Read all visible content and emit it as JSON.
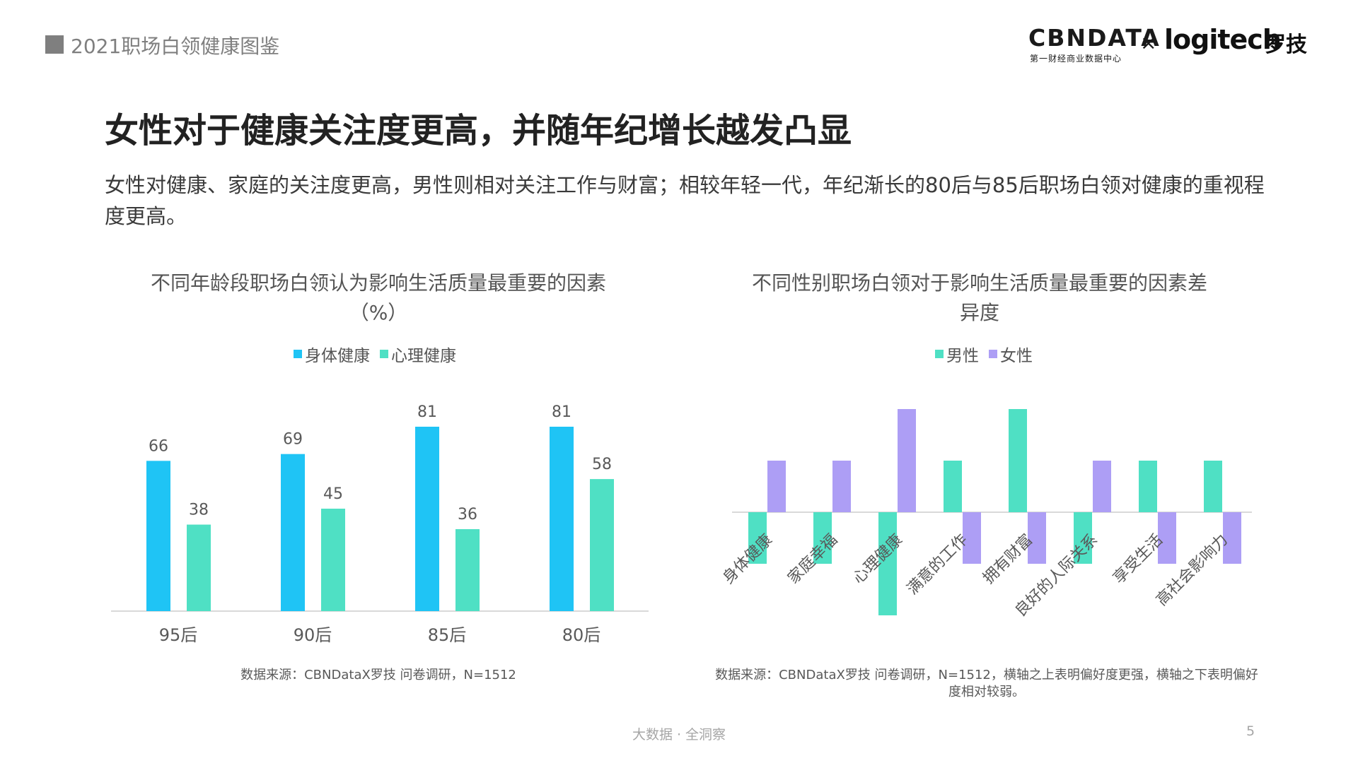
{
  "header": {
    "title": "2021职场白领健康图鉴",
    "logo_cbn": "CBNDATA",
    "logo_cbn_sub": "第一财经商业数据中心",
    "logo_x": "×",
    "logo_logitech": "logitech",
    "logo_logitech_cn": "罗技"
  },
  "main_title": "女性对于健康关注度更高，并随年纪增长越发凸显",
  "subtitle": "女性对健康、家庭的关注度更高，男性则相对关注工作与财富；相较年轻一代，年纪渐长的80后与85后职场白领对健康的重视程度更高。",
  "colors": {
    "physical": "#1fc4f5",
    "mental": "#4fe0c4",
    "male": "#4fe0c4",
    "female": "#ad9ef5",
    "axis": "#d9d9d9"
  },
  "chart_data": [
    {
      "type": "bar",
      "title": "不同年龄段职场白领认为影响生活质量最重要的因素（%）",
      "categories": [
        "95后",
        "90后",
        "85后",
        "80后"
      ],
      "series": [
        {
          "name": "身体健康",
          "values": [
            66,
            69,
            81,
            81
          ]
        },
        {
          "name": "心理健康",
          "values": [
            38,
            45,
            36,
            58
          ]
        }
      ],
      "ylim": [
        0,
        90
      ],
      "grid": false,
      "legend": "top",
      "source": "数据来源：CBNDataX罗技 问卷调研，N=1512"
    },
    {
      "type": "bar",
      "title": "不同性别职场白领对于影响生活质量最重要的因素差异度",
      "categories": [
        "身体健康",
        "家庭幸福",
        "心理健康",
        "满意的工作",
        "拥有财富",
        "良好的人际关系",
        "享受生活",
        "高社会影响力"
      ],
      "series": [
        {
          "name": "男性",
          "values": [
            -1,
            -1,
            -2,
            1,
            2,
            -1,
            1,
            1
          ]
        },
        {
          "name": "女性",
          "values": [
            1,
            1,
            2,
            -1,
            -1,
            1,
            -1,
            -1
          ]
        }
      ],
      "ylim": [
        -2,
        2
      ],
      "grid": false,
      "legend": "top",
      "source": "数据来源：CBNDataX罗技 问卷调研，N=1512，横轴之上表明偏好度更强，横轴之下表明偏好度相对较弱。"
    }
  ],
  "footer": {
    "text": "大数据 · 全洞察",
    "page": "5"
  }
}
